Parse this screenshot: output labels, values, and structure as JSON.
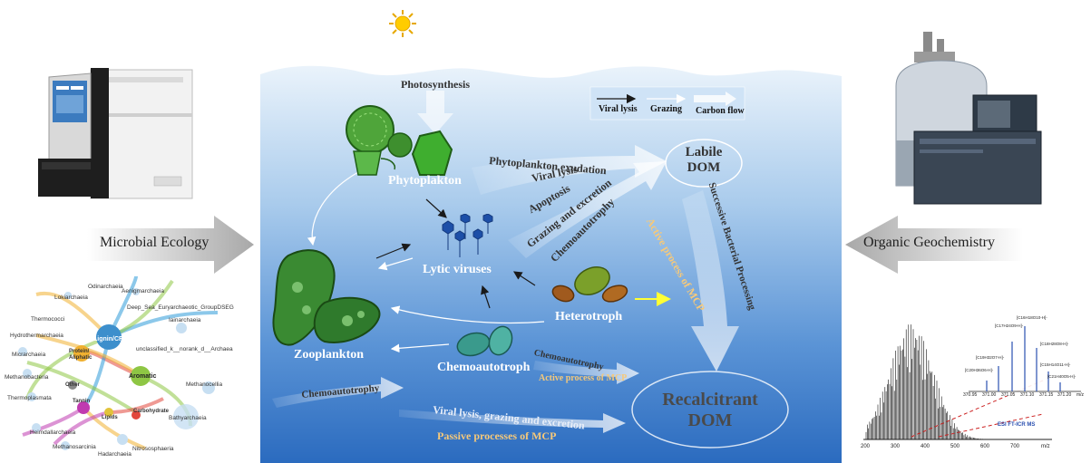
{
  "sun": {
    "icon": "sun-icon"
  },
  "ocean": {
    "photosynthesis": "Photosynthesis",
    "legend": {
      "viral_lysis": "Viral lysis",
      "grazing": "Grazing",
      "carbon_flow": "Carbon flow"
    },
    "labile_dom": {
      "line1": "Labile",
      "line2": "DOM"
    },
    "recalcitrant_dom": {
      "line1": "Recalcitrant",
      "line2": "DOM"
    },
    "organisms": {
      "phytoplankton": "Phytoplakton",
      "lytic_viruses": "Lytic viruses",
      "heterotroph": "Heterotroph",
      "zooplankton": "Zooplankton",
      "chemoautotroph": "Chemoautotroph"
    },
    "processes": {
      "exudation": "Phytoplankton exudation",
      "viral_lysis": "Viral lysis",
      "apoptosis": "Apoptosis",
      "grazing_excretion": "Grazing and excretion",
      "chemoautotrophy_diag": "Chemoautotrophy",
      "successive": "Successive Bacterial Processing",
      "active_mcp_diag": "Active process of MCP",
      "chemoautotrophy_right": "Chemoautotrophy",
      "active_mcp_right": "Active process of MCP",
      "chemoautotrophy_left": "Chemoautotrophy",
      "viral_grazing_excretion": "Viral lysis, grazing and excretion",
      "passive_mcp": "Passive processes of MCP"
    },
    "colors": {
      "ocean_top": "#e9f3fb",
      "ocean_bottom": "#1f5fb3",
      "mcp_text": "#f6c97a"
    }
  },
  "left": {
    "arrow_label": "Microbial Ecology",
    "network": {
      "center_nodes": [
        "Lignin/CRAM",
        "Protein/\nAliphatic",
        "Aromatic",
        "Other",
        "Tannin",
        "Lipids",
        "Carbohydrate"
      ],
      "center_node_lines": {
        "protein_1": "Protein/",
        "protein_2": "Aliphatic"
      },
      "taxa": [
        "Odinarchaeia",
        "Aenigmarchaeia",
        "Lokiarchaeia",
        "Deep_Sea_Euryarchaeotic_GroupDSEG",
        "Thermococci",
        "Iainarchaeia",
        "Hydrothermarchaeia",
        "unclassified_k__norank_d__Archaea",
        "Micrarchaeia",
        "Methanobacteria",
        "Methanocellia",
        "Thermoplasmata",
        "Bathyarchaeia",
        "Heimdallarchaeia",
        "Methanosarcinia",
        "Hadarchaeia",
        "Nitrososphaeria"
      ]
    }
  },
  "right": {
    "arrow_label": "Organic Geochemistry",
    "spectrum": {
      "label": "ESI FT-ICR MS",
      "x_ticks": [
        "200",
        "300",
        "400",
        "500",
        "600",
        "700"
      ],
      "x_unit": "m/z",
      "inset_ticks": [
        "370.95",
        "371.00",
        "371.05",
        "371.10",
        "371.15",
        "371.20"
      ],
      "inset_unit": "m/z",
      "peak_labels": [
        "[C16H18O10-H]-",
        "[C17H24O9-H]-",
        "[C18H28O8-H]-",
        "[C19H32O7-H]-",
        "[C15H14O11-H]-",
        "[C20H36O6-H]-",
        "[C21H40O5-H]-"
      ]
    }
  }
}
